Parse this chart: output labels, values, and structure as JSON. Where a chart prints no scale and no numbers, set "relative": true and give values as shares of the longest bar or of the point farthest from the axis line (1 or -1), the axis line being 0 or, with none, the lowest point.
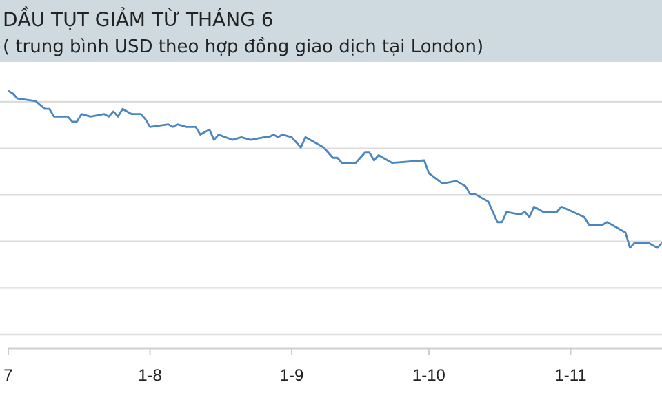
{
  "chart_data": {
    "type": "line",
    "title": "DẦU TỤT GIẢM TỪ THÁNG 6",
    "subtitle": "( trung bình USD theo hợp đồng giao dịch tại London)",
    "relative": true,
    "grid": "y",
    "marker": "none",
    "line_style": "solid",
    "xlim": [
      "--07-01",
      "--11-21"
    ],
    "xticks": [
      {
        "value": "--07-01",
        "label": "7"
      },
      {
        "value": "--08-01",
        "label": "1-8"
      },
      {
        "value": "--09-01",
        "label": "1-9"
      },
      {
        "value": "--10-01",
        "label": "1-10"
      },
      {
        "value": "--11-01",
        "label": "1-11"
      }
    ],
    "series": [
      {
        "color": "#4a86bf",
        "x": [
          "--07-01",
          "--07-02",
          "--07-03",
          "--07-07",
          "--07-09",
          "--07-10",
          "--07-11",
          "--07-14",
          "--07-15",
          "--07-16",
          "--07-17",
          "--07-19",
          "--07-22",
          "--07-23",
          "--07-24",
          "--07-25",
          "--07-26",
          "--07-28",
          "--07-30",
          "--07-31",
          "--08-01",
          "--08-05",
          "--08-06",
          "--08-07",
          "--08-09",
          "--08-11",
          "--08-12",
          "--08-14",
          "--08-15",
          "--08-16",
          "--08-19",
          "--08-21",
          "--08-23",
          "--08-26",
          "--08-27",
          "--08-28",
          "--08-29",
          "--08-30",
          "--09-01",
          "--09-03",
          "--09-04",
          "--09-06",
          "--09-08",
          "--09-10",
          "--09-11",
          "--09-12",
          "--09-15",
          "--09-17",
          "--09-18",
          "--09-19",
          "--09-20",
          "--09-23",
          "--09-30",
          "--10-01",
          "--10-04",
          "--10-07",
          "--10-09",
          "--10-10",
          "--10-11",
          "--10-14",
          "--10-16",
          "--10-17",
          "--10-18",
          "--10-21",
          "--10-22",
          "--10-23",
          "--10-24",
          "--10-26",
          "--10-29",
          "--10-30",
          "--11-04",
          "--11-05",
          "--11-08",
          "--11-09",
          "--11-13",
          "--11-14",
          "--11-15",
          "--11-18",
          "--11-20",
          "--11-21"
        ],
        "values": [
          1.0,
          0.99,
          0.97,
          0.96,
          0.93,
          0.93,
          0.9,
          0.9,
          0.88,
          0.88,
          0.91,
          0.9,
          0.91,
          0.9,
          0.92,
          0.9,
          0.93,
          0.91,
          0.91,
          0.89,
          0.86,
          0.87,
          0.86,
          0.87,
          0.86,
          0.86,
          0.83,
          0.85,
          0.81,
          0.83,
          0.81,
          0.82,
          0.81,
          0.82,
          0.82,
          0.83,
          0.82,
          0.83,
          0.82,
          0.78,
          0.82,
          0.8,
          0.78,
          0.74,
          0.74,
          0.72,
          0.72,
          0.76,
          0.76,
          0.73,
          0.75,
          0.72,
          0.73,
          0.68,
          0.64,
          0.65,
          0.63,
          0.6,
          0.6,
          0.57,
          0.49,
          0.49,
          0.53,
          0.52,
          0.53,
          0.51,
          0.55,
          0.53,
          0.53,
          0.55,
          0.51,
          0.48,
          0.48,
          0.49,
          0.45,
          0.39,
          0.41,
          0.41,
          0.39,
          0.41
        ]
      }
    ]
  }
}
